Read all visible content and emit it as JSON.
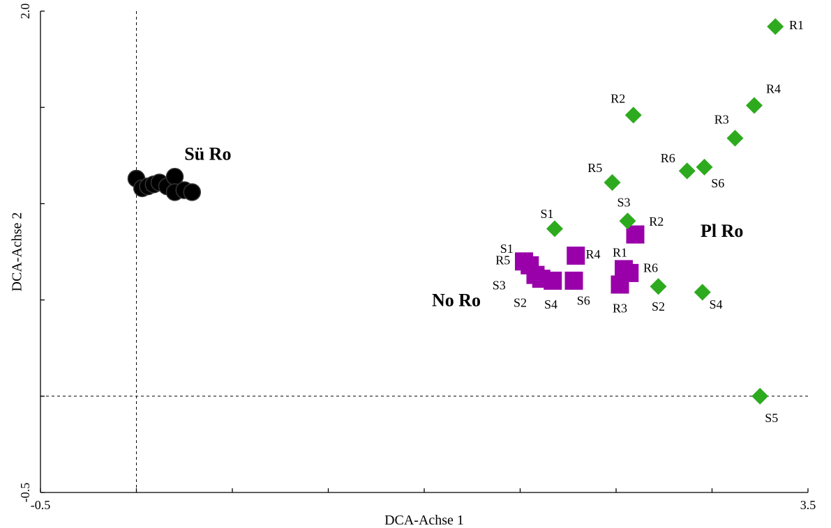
{
  "chart_data": {
    "type": "scatter",
    "title": "",
    "xlabel": "DCA-Achse 1",
    "ylabel": "DCA-Achse 2",
    "xlim": [
      -0.5,
      3.5
    ],
    "ylim": [
      -0.5,
      2.0
    ],
    "x_tick_labels": [
      {
        "value": -0.5,
        "label": "-0.5"
      },
      {
        "value": 3.5,
        "label": "3.5"
      }
    ],
    "y_tick_labels": [
      {
        "value": -0.5,
        "label": "-0.5"
      },
      {
        "value": 2.0,
        "label": "2.0"
      }
    ],
    "x_ticks": [
      -0.5,
      0.0,
      0.5,
      1.0,
      1.5,
      2.0,
      2.5,
      3.0,
      3.5
    ],
    "y_ticks": [
      -0.5,
      0.0,
      0.5,
      1.0,
      1.5,
      2.0
    ],
    "reference_lines": {
      "x": 0.0,
      "y": 0.0
    },
    "grid": false,
    "groups": [
      {
        "label": "Sü Ro",
        "label_pos": {
          "x": 0.25,
          "y": 1.25
        },
        "color": "#000000",
        "marker": "circle",
        "points": [
          {
            "x": 0.0,
            "y": 1.13
          },
          {
            "x": 0.03,
            "y": 1.08
          },
          {
            "x": 0.06,
            "y": 1.09
          },
          {
            "x": 0.09,
            "y": 1.1
          },
          {
            "x": 0.12,
            "y": 1.11
          },
          {
            "x": 0.16,
            "y": 1.09
          },
          {
            "x": 0.2,
            "y": 1.14
          },
          {
            "x": 0.2,
            "y": 1.06
          },
          {
            "x": 0.25,
            "y": 1.07
          },
          {
            "x": 0.29,
            "y": 1.06
          }
        ]
      },
      {
        "label": "No Ro",
        "label_pos": {
          "x": 1.54,
          "y": 0.49
        },
        "color": "#9900AA",
        "marker": "square",
        "points": [
          {
            "x": 2.02,
            "y": 0.7,
            "text": "S1",
            "dx": -0.09,
            "dy": 0.06
          },
          {
            "x": 2.08,
            "y": 0.63,
            "text": "S3",
            "dx": -0.19,
            "dy": -0.06
          },
          {
            "x": 2.11,
            "y": 0.61,
            "text": "S2",
            "dx": -0.11,
            "dy": -0.13
          },
          {
            "x": 2.17,
            "y": 0.6,
            "text": "S4",
            "dx": -0.01,
            "dy": -0.13
          },
          {
            "x": 2.28,
            "y": 0.6,
            "text": "S6",
            "dx": 0.05,
            "dy": -0.11
          },
          {
            "x": 2.29,
            "y": 0.73,
            "text": "R4",
            "dx": 0.09,
            "dy": 0.0
          },
          {
            "x": 2.05,
            "y": 0.68,
            "text": "R5",
            "dx": -0.14,
            "dy": 0.02
          },
          {
            "x": 2.52,
            "y": 0.58,
            "text": "R3",
            "dx": 0.0,
            "dy": -0.13
          },
          {
            "x": 2.54,
            "y": 0.66,
            "text": "R1",
            "dx": -0.02,
            "dy": 0.08
          },
          {
            "x": 2.57,
            "y": 0.64,
            "text": "R6",
            "dx": 0.11,
            "dy": 0.02
          },
          {
            "x": 2.6,
            "y": 0.84,
            "text": "R2",
            "dx": 0.11,
            "dy": 0.06
          }
        ]
      },
      {
        "label": "Pl Ro",
        "label_pos": {
          "x": 2.94,
          "y": 0.85
        },
        "color": "#2EAA1E",
        "marker": "diamond",
        "points": [
          {
            "x": 3.33,
            "y": 1.92,
            "text": "R1",
            "dx": 0.11,
            "dy": 0.0
          },
          {
            "x": 3.22,
            "y": 1.51,
            "text": "R4",
            "dx": 0.1,
            "dy": 0.08
          },
          {
            "x": 2.59,
            "y": 1.46,
            "text": "R2",
            "dx": -0.08,
            "dy": 0.08
          },
          {
            "x": 3.12,
            "y": 1.34,
            "text": "R3",
            "dx": -0.07,
            "dy": 0.09
          },
          {
            "x": 2.87,
            "y": 1.17,
            "text": "R6",
            "dx": -0.1,
            "dy": 0.06
          },
          {
            "x": 2.96,
            "y": 1.19,
            "text": "S6",
            "dx": 0.07,
            "dy": -0.09
          },
          {
            "x": 2.48,
            "y": 1.11,
            "text": "R5",
            "dx": -0.09,
            "dy": 0.07
          },
          {
            "x": 2.56,
            "y": 0.91,
            "text": "S3",
            "dx": -0.02,
            "dy": 0.09
          },
          {
            "x": 2.18,
            "y": 0.87,
            "text": "S1",
            "dx": -0.04,
            "dy": 0.07
          },
          {
            "x": 2.72,
            "y": 0.57,
            "text": "S2",
            "dx": 0.0,
            "dy": -0.11
          },
          {
            "x": 2.95,
            "y": 0.54,
            "text": "S4",
            "dx": 0.07,
            "dy": -0.07
          },
          {
            "x": 3.25,
            "y": 0.0,
            "text": "S5",
            "dx": 0.06,
            "dy": -0.12
          }
        ]
      }
    ]
  }
}
